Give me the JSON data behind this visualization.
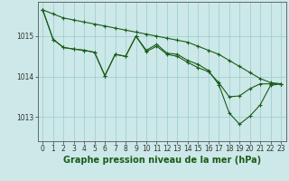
{
  "title": "Graphe pression niveau de la mer (hPa)",
  "bg_color": "#cce8e8",
  "grid_color": "#99cccc",
  "line_color": "#1a5c1a",
  "xlim_min": -0.5,
  "xlim_max": 23.5,
  "ylim_min": 1012.4,
  "ylim_max": 1015.85,
  "yticks": [
    1013,
    1014,
    1015
  ],
  "xticks": [
    0,
    1,
    2,
    3,
    4,
    5,
    6,
    7,
    8,
    9,
    10,
    11,
    12,
    13,
    14,
    15,
    16,
    17,
    18,
    19,
    20,
    21,
    22,
    23
  ],
  "series": [
    {
      "x": [
        0,
        1,
        2,
        3,
        4,
        5,
        6,
        7,
        8,
        9,
        10,
        11,
        12,
        13,
        14,
        15,
        16,
        17,
        18,
        19,
        20,
        21,
        22,
        23
      ],
      "y": [
        1015.65,
        1015.55,
        1015.45,
        1015.4,
        1015.35,
        1015.3,
        1015.25,
        1015.2,
        1015.15,
        1015.1,
        1015.05,
        1015.0,
        1014.95,
        1014.9,
        1014.85,
        1014.75,
        1014.65,
        1014.55,
        1014.4,
        1014.25,
        1014.1,
        1013.95,
        1013.85,
        1013.82
      ]
    },
    {
      "x": [
        0,
        1,
        2,
        3,
        4,
        5,
        6,
        7,
        8,
        9,
        10,
        11,
        12,
        13,
        14,
        15,
        16,
        17,
        18,
        19,
        20,
        21,
        22,
        23
      ],
      "y": [
        1015.65,
        1014.92,
        1014.72,
        1014.68,
        1014.65,
        1014.6,
        1014.02,
        1014.55,
        1014.5,
        1015.0,
        1014.62,
        1014.75,
        1014.55,
        1014.5,
        1014.35,
        1014.22,
        1014.12,
        1013.85,
        1013.5,
        1013.52,
        1013.7,
        1013.82,
        1013.82,
        1013.82
      ]
    },
    {
      "x": [
        0,
        1,
        2,
        3,
        4,
        5,
        6,
        7,
        8,
        9,
        10,
        11,
        12,
        13,
        14,
        15,
        16,
        17,
        18,
        19,
        20,
        21,
        22,
        23
      ],
      "y": [
        1015.65,
        1014.92,
        1014.72,
        1014.68,
        1014.65,
        1014.6,
        1014.02,
        1014.55,
        1014.5,
        1015.0,
        1014.65,
        1014.8,
        1014.58,
        1014.55,
        1014.4,
        1014.3,
        1014.15,
        1013.8,
        1013.1,
        1012.82,
        1013.02,
        1013.3,
        1013.78,
        1013.82
      ]
    }
  ],
  "marker": "+",
  "markersize": 3,
  "markeredgewidth": 0.8,
  "linewidth": 0.8,
  "tick_fontsize": 5.5,
  "title_fontsize": 7,
  "title_color": "#1a5c1a",
  "tick_color": "#333333",
  "spine_color": "#555555"
}
